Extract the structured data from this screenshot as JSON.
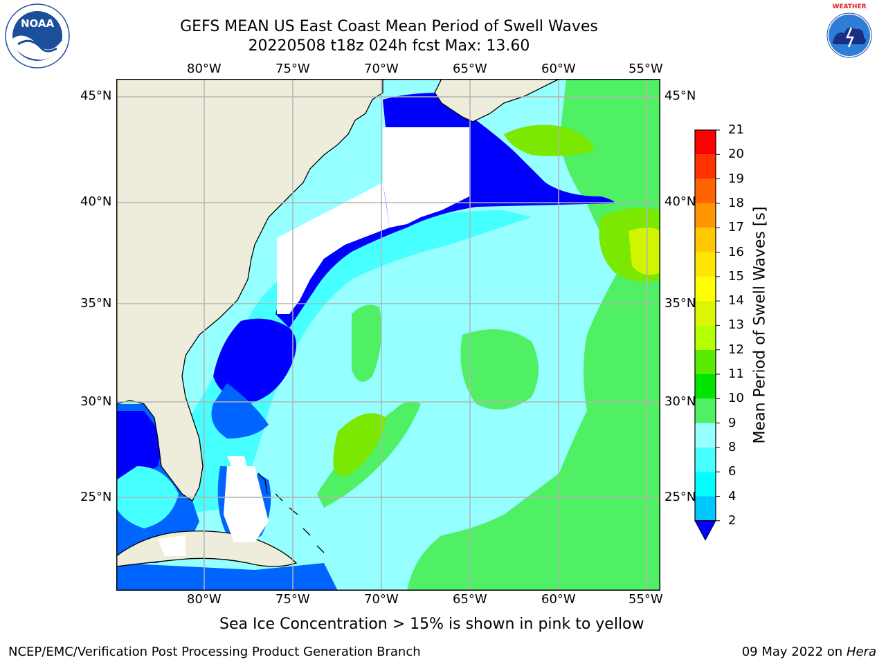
{
  "header": {
    "title_line1": "GEFS MEAN US East Coast Mean Period of Swell Waves",
    "title_line2": "20220508 t18z 024h fcst   Max: 13.60"
  },
  "logos": {
    "left": "NOAA",
    "left_ring": "NATIONAL OCEANIC AND ATMOSPHERIC ADMINISTRATION · U.S. DEPARTMENT OF COMMERCE",
    "right_ring": "NATIONAL WEATHER SERVICE"
  },
  "map": {
    "projection": "lat-lon",
    "lon_range": [
      -85,
      -54.2
    ],
    "lat_range": [
      20.5,
      46
    ],
    "lon_ticks": [
      "80°W",
      "75°W",
      "70°W",
      "65°W",
      "60°W",
      "55°W"
    ],
    "lat_ticks": [
      "45°N",
      "40°N",
      "35°N",
      "30°N",
      "25°N"
    ],
    "grid": true,
    "colors": {
      "land": "#eeeddc",
      "no_data": "#ffffff",
      "grid": "#b4b4b4"
    }
  },
  "colorbar": {
    "label": "Mean Period of Swell Waves [s]",
    "levels": [
      "2",
      "4",
      "6",
      "8",
      "9",
      "10",
      "11",
      "12",
      "13",
      "14",
      "15",
      "16",
      "17",
      "18",
      "19",
      "20",
      "21"
    ],
    "colors": [
      "#0064ff",
      "#00c8ff",
      "#00ffff",
      "#46ffff",
      "#96ffff",
      "#50f064",
      "#00e600",
      "#5aeb00",
      "#b4ff00",
      "#dcf500",
      "#ffff00",
      "#ffe600",
      "#ffc800",
      "#ff9600",
      "#ff6400",
      "#ff3200",
      "#ff0000"
    ],
    "extend_min_color": "#0000ff",
    "position": "right"
  },
  "notes": {
    "sea_ice": "Sea Ice Concentration > 15% is shown in pink to yellow"
  },
  "footer": {
    "left": "NCEP/EMC/Verification Post Processing Product Generation Branch",
    "right_date": "09 May 2022 on",
    "right_machine": "Hera"
  }
}
